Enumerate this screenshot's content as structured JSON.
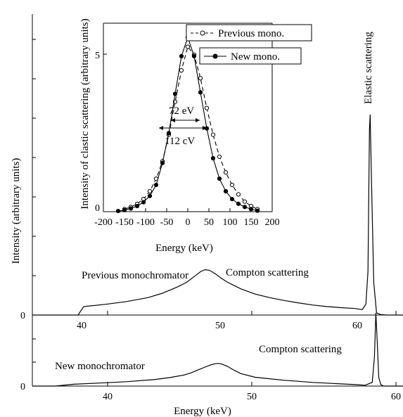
{
  "chart_data": [
    {
      "type": "line",
      "role": "main-upper",
      "ylabel": "Intensity (arbitrary units)",
      "y_tick_labels": [
        "0"
      ],
      "x_tick_labels": [
        "40",
        "50",
        "60"
      ],
      "annotations": [
        "Previous monochromator",
        "Compton scattering",
        "Elastic scattering"
      ],
      "xlim": [
        35.4,
        61.4
      ],
      "ylim": [
        0,
        1.0
      ],
      "grid": false,
      "series": [
        {
          "x": [
            35.4,
            37.2,
            38.6,
            38.9,
            39.0,
            40.5,
            42,
            43.5,
            44.5,
            45.5,
            46.2,
            46.8,
            47.2,
            47.5,
            47.8,
            48.2,
            48.6,
            49,
            50,
            51,
            52,
            53,
            54,
            55,
            56,
            57,
            58.0,
            58.5,
            58.75,
            58.9,
            59.0,
            59.05,
            59.15,
            59.3,
            59.5,
            59.8,
            60.2,
            61.0,
            61.4
          ],
          "y": [
            0.0,
            0.0,
            0.0,
            0.03,
            0.039,
            0.049,
            0.062,
            0.08,
            0.1,
            0.127,
            0.15,
            0.18,
            0.2,
            0.208,
            0.205,
            0.19,
            0.17,
            0.153,
            0.12,
            0.096,
            0.08,
            0.067,
            0.056,
            0.046,
            0.039,
            0.034,
            0.03,
            0.025,
            0.05,
            0.2,
            0.85,
            0.92,
            0.6,
            0.15,
            0.01,
            0.002,
            0.0,
            0.0,
            0.0
          ]
        }
      ]
    },
    {
      "type": "line",
      "role": "main-lower",
      "xlabel": "Energy (keV)",
      "y_tick_labels": [
        "0"
      ],
      "x_tick_labels": [
        "40",
        "50",
        "60"
      ],
      "annotations": [
        "New monochromator",
        "Compton scattering"
      ],
      "xlim": [
        35.4,
        61.4
      ],
      "ylim": [
        0,
        1.0
      ],
      "grid": false,
      "series": [
        {
          "x": [
            35.4,
            37,
            38.3,
            40,
            42,
            44,
            45,
            46,
            46.5,
            47,
            47.5,
            47.9,
            48.2,
            48.4,
            48.6,
            48.8,
            49.1,
            49.4,
            50,
            51,
            52,
            53,
            54,
            55,
            56,
            57,
            58,
            58.7,
            59.2,
            59.35,
            59.45,
            59.55,
            59.65,
            59.8,
            60,
            60.5,
            61.4
          ],
          "y": [
            0.0,
            0.0,
            0.025,
            0.04,
            0.06,
            0.09,
            0.115,
            0.15,
            0.18,
            0.22,
            0.26,
            0.29,
            0.305,
            0.31,
            0.305,
            0.29,
            0.265,
            0.23,
            0.17,
            0.12,
            0.1,
            0.08,
            0.065,
            0.05,
            0.04,
            0.03,
            0.02,
            0.012,
            0.05,
            0.4,
            1.0,
            0.6,
            0.12,
            0.02,
            0.0,
            0.0,
            0.0
          ]
        }
      ]
    },
    {
      "type": "line",
      "role": "inset",
      "xlabel": "Energy (keV)",
      "ylabel": "Intensity of clastic scattering (arbitrary units)",
      "x_ticks": [
        -200,
        -150,
        -100,
        -50,
        0,
        50,
        100,
        150,
        200
      ],
      "y_tick_labels": [
        "0",
        "5"
      ],
      "xlim": [
        -200,
        200
      ],
      "ylim": [
        0,
        6
      ],
      "grid": false,
      "legend": "top-right",
      "annotations": [
        "72 eV",
        "112 cV"
      ],
      "series": [
        {
          "name": "Previous mono.",
          "style": "dashed-open-circles",
          "x": [
            -150,
            -135,
            -120,
            -105,
            -90,
            -75,
            -60,
            -45,
            -30,
            -15,
            0,
            15,
            30,
            45,
            60,
            75,
            90,
            105,
            120,
            135,
            150,
            165
          ],
          "y": [
            0.08,
            0.15,
            0.25,
            0.4,
            0.65,
            1.05,
            1.6,
            2.45,
            3.5,
            4.5,
            5.25,
            5.0,
            4.25,
            3.3,
            2.45,
            1.75,
            1.25,
            0.85,
            0.55,
            0.32,
            0.18,
            0.08
          ]
        },
        {
          "name": "New mono.",
          "style": "solid-filled-circles",
          "x": [
            -165,
            -150,
            -135,
            -120,
            -105,
            -90,
            -75,
            -60,
            -45,
            -30,
            -15,
            0,
            15,
            30,
            45,
            60,
            75,
            90,
            105,
            120,
            135,
            150,
            165
          ],
          "y": [
            0.02,
            0.05,
            0.1,
            0.18,
            0.3,
            0.5,
            0.85,
            1.55,
            2.5,
            3.75,
            4.95,
            5.55,
            4.95,
            3.8,
            2.65,
            1.7,
            1.05,
            0.65,
            0.4,
            0.25,
            0.15,
            0.08,
            0.03
          ]
        }
      ]
    }
  ]
}
